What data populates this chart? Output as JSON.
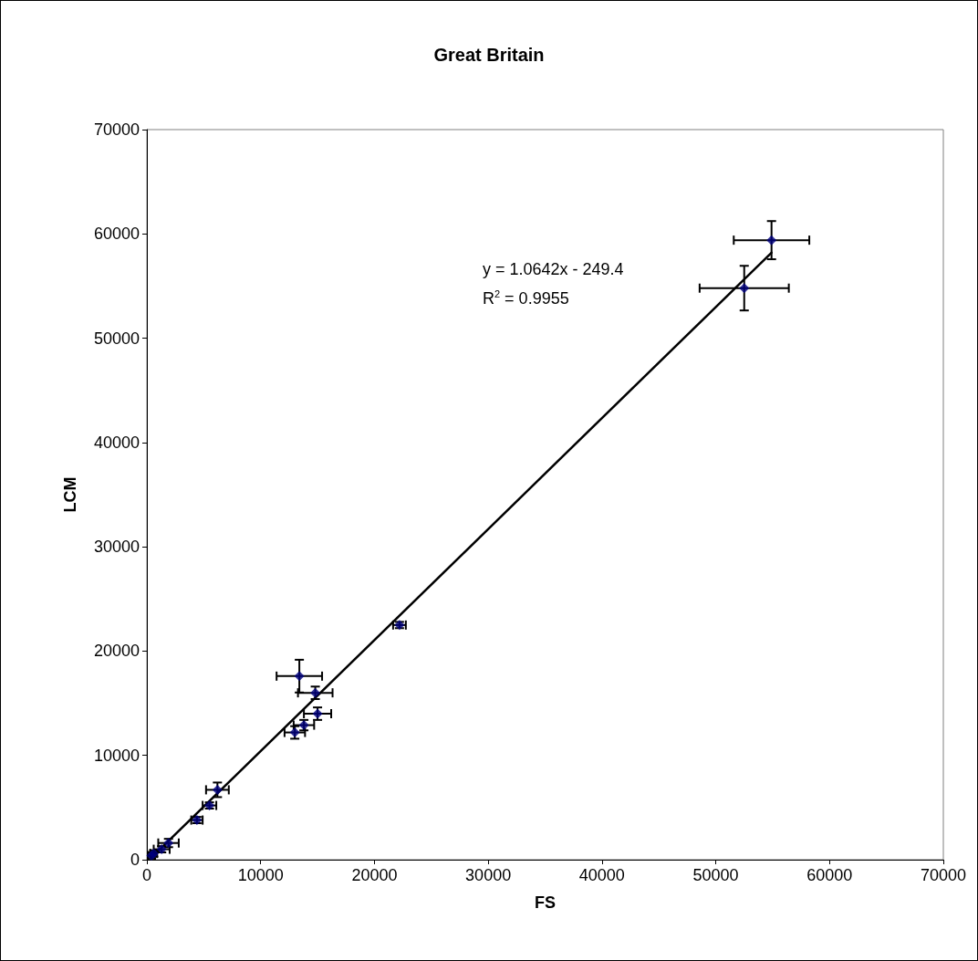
{
  "chart_data": {
    "type": "scatter",
    "title": "Great Britain",
    "xlabel": "FS",
    "ylabel": "LCM",
    "annotations": [
      "y = 1.0642x - 249.4",
      "R$^{2}$ = 0.9955"
    ],
    "xlim": [
      0,
      70000
    ],
    "xticks": [
      0,
      10000,
      20000,
      30000,
      40000,
      50000,
      60000,
      70000
    ],
    "ylim": [
      0,
      70000
    ],
    "yticks": [
      0,
      10000,
      20000,
      30000,
      40000,
      50000,
      60000,
      70000
    ],
    "grid": false,
    "series": [
      {
        "color": "#000080",
        "marker": "diamond",
        "x": [
          54900,
          52500,
          22200,
          13400,
          14800,
          15000,
          13800,
          13000,
          6200,
          5500,
          4400,
          1900,
          1300,
          600,
          400
        ],
        "values": [
          59400,
          54800,
          22500,
          17600,
          16000,
          14000,
          12900,
          12200,
          6700,
          5200,
          3800,
          1600,
          1000,
          600,
          400
        ],
        "xerrors": [
          3320,
          3920,
          560,
          2000,
          1520,
          1200,
          900,
          900,
          1000,
          600,
          500,
          900,
          700,
          300,
          300
        ],
        "errors": [
          1830,
          2140,
          300,
          1570,
          600,
          600,
          500,
          600,
          700,
          300,
          300,
          400,
          300,
          300,
          300
        ]
      },
      {
        "type": "line",
        "color": "#000000",
        "line_style": "solid",
        "x": [
          400,
          54900
        ],
        "values": [
          200,
          58200
        ]
      }
    ]
  }
}
